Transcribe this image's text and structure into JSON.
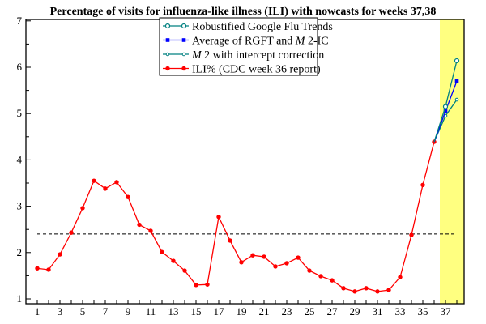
{
  "chart_data": {
    "type": "line",
    "title": "Percentage of visits for influenza-like illness (ILI) with nowcasts for weeks 37,38",
    "xlabel": "",
    "ylabel": "",
    "xlim": [
      0.2,
      38.6
    ],
    "ylim": [
      0.9,
      7
    ],
    "xticks": [
      1,
      3,
      5,
      7,
      9,
      11,
      13,
      15,
      17,
      19,
      21,
      23,
      25,
      27,
      29,
      31,
      33,
      35,
      37
    ],
    "yticks": [
      1,
      2,
      3,
      4,
      5,
      6,
      7
    ],
    "nowcast_weeks_highlight": [
      36.5,
      38.6
    ],
    "reference_line": 2.4,
    "legend_position": "top-center",
    "series": [
      {
        "name": "Robustified Google Flu Trends",
        "color": "#008080",
        "marker": "open-circle",
        "x": [
          36,
          37,
          38
        ],
        "values": [
          4.39,
          5.15,
          6.14
        ]
      },
      {
        "name": "Average of RGFT and M 2-IC",
        "color": "#0000ff",
        "marker": "square",
        "x": [
          36,
          37,
          38
        ],
        "values": [
          4.39,
          5.05,
          5.7
        ]
      },
      {
        "name": "M 2 with intercept correction",
        "color": "#008080",
        "marker": "small-open-circle",
        "x": [
          36,
          37,
          38
        ],
        "values": [
          4.39,
          4.95,
          5.3
        ]
      },
      {
        "name": "ILI% (CDC week 36 report)",
        "color": "#ff0000",
        "marker": "dot",
        "x": [
          1,
          2,
          3,
          4,
          5,
          6,
          7,
          8,
          9,
          10,
          11,
          12,
          13,
          14,
          15,
          16,
          17,
          18,
          19,
          20,
          21,
          22,
          23,
          24,
          25,
          26,
          27,
          28,
          29,
          30,
          31,
          32,
          33,
          34,
          35,
          36
        ],
        "values": [
          1.66,
          1.63,
          1.96,
          2.43,
          2.96,
          3.55,
          3.38,
          3.52,
          3.2,
          2.6,
          2.47,
          2.01,
          1.82,
          1.61,
          1.3,
          1.31,
          2.77,
          2.26,
          1.79,
          1.94,
          1.91,
          1.7,
          1.77,
          1.89,
          1.61,
          1.49,
          1.4,
          1.23,
          1.16,
          1.23,
          1.16,
          1.19,
          1.47,
          2.38,
          3.46,
          4.39
        ]
      }
    ]
  },
  "legend": {
    "items": [
      {
        "pre": "Robustified Google Flu Trends",
        "italic": "",
        "post": ""
      },
      {
        "pre": "Average of RGFT and ",
        "italic": "M",
        "post": " 2-IC"
      },
      {
        "pre": "",
        "italic": "M",
        "post": " 2 with intercept correction"
      },
      {
        "pre": "ILI% (CDC week 36 report)",
        "italic": "",
        "post": ""
      }
    ]
  }
}
